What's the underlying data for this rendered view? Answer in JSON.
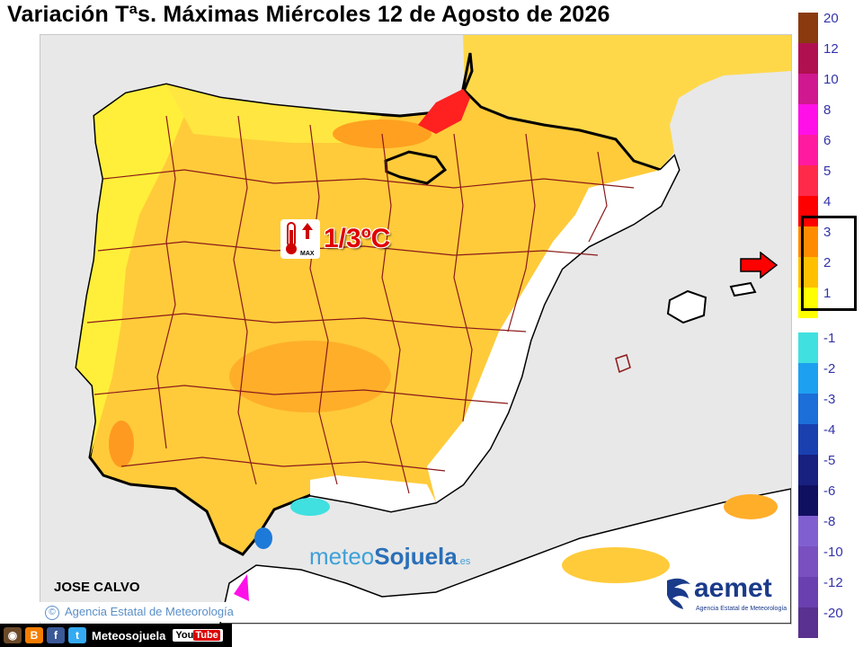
{
  "title": "Variación Tªs. Máximas Miércoles 12 de Agosto de 2026",
  "badge": {
    "icon": "thermometer-max-icon",
    "sub": "MAX",
    "range": "1/3ºC"
  },
  "legend": {
    "positive": [
      {
        "label": "20",
        "color": "#8b3a0f"
      },
      {
        "label": "12",
        "color": "#b01050"
      },
      {
        "label": "10",
        "color": "#d01890"
      },
      {
        "label": "8",
        "color": "#ff10e8"
      },
      {
        "label": "6",
        "color": "#ff1aa0"
      },
      {
        "label": "5",
        "color": "#ff2a4a"
      },
      {
        "label": "4",
        "color": "#ff0000"
      },
      {
        "label": "3",
        "color": "#ff8c00"
      },
      {
        "label": "2",
        "color": "#ffc000"
      },
      {
        "label": "1",
        "color": "#ffff00"
      }
    ],
    "negative": [
      {
        "label": "-1",
        "color": "#40e0e0"
      },
      {
        "label": "-2",
        "color": "#1ea0f0"
      },
      {
        "label": "-3",
        "color": "#1c6ed8"
      },
      {
        "label": "-4",
        "color": "#1a40b0"
      },
      {
        "label": "-5",
        "color": "#182080"
      },
      {
        "label": "-6",
        "color": "#101060"
      },
      {
        "label": "-8",
        "color": "#8060d0"
      },
      {
        "label": "-10",
        "color": "#7a50c0"
      },
      {
        "label": "-12",
        "color": "#6a40b0"
      },
      {
        "label": "-20",
        "color": "#5a3090"
      }
    ]
  },
  "author": "JOSE CALVO",
  "agency": "Agencia Estatal de Meteorología",
  "social": {
    "name": "Meteosojuela",
    "youtube": "YouTube"
  },
  "brand": {
    "part1": "meteo",
    "part2": "Sojuela",
    "part3": ".es"
  },
  "aemet": {
    "word": "aemet",
    "sub": "Agencia Estatal de Meteorología"
  },
  "colors": {
    "yellow": "#ffff00",
    "light_orange": "#ffc000",
    "orange": "#ff8c00",
    "red": "#ff0000",
    "sea": "#e8e8e8"
  }
}
